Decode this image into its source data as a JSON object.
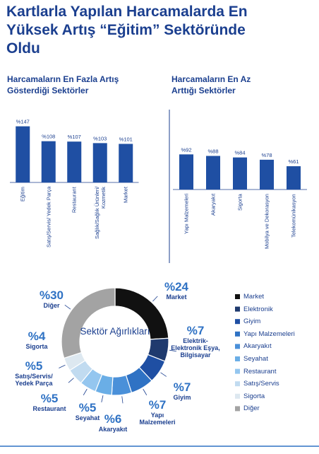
{
  "header": {
    "title": "Kartlarla Yapılan Harcamalarda En Yüksek Artış “Eğitim” Sektöründe Oldu"
  },
  "chart_data": [
    {
      "type": "bar",
      "title": "Harcamaların En Fazla Artış Gösterdiği Sektörler",
      "categories": [
        "Eğitim",
        "Satış/Servis/ Yedek Parça",
        "Restaurant",
        "Sağlık/Sağlık Ürünleri/ Kozmetik",
        "Market"
      ],
      "values": [
        147,
        108,
        107,
        103,
        101
      ],
      "value_labels": [
        "%147",
        "%108",
        "%107",
        "%103",
        "%101"
      ],
      "color": "#1f4fa3"
    },
    {
      "type": "bar",
      "title": "Harcamaların En Az Arttığı Sektörler",
      "categories": [
        "Yapı Malzemeleri",
        "Akaryakıt",
        "Sigorta",
        "Mobilya ve Dekorasyon",
        "Telekomünikasyon"
      ],
      "values": [
        92,
        88,
        84,
        78,
        61
      ],
      "value_labels": [
        "%92",
        "%88",
        "%84",
        "%78",
        "%61"
      ],
      "color": "#1f4fa3"
    },
    {
      "type": "donut",
      "center_text": "Sektör Ağırlıkları",
      "categories": [
        "Market",
        "Elektronik",
        "Giyim",
        "Yapı Malzemeleri",
        "Akaryakıt",
        "Seyahat",
        "Restaurant",
        "Satış/Servis",
        "Sigorta",
        "Diğer"
      ],
      "labels": [
        "Market",
        "Elektrik-Elektronik Eşya, Bilgisayar",
        "Giyim",
        "Yapı Malzemeleri",
        "Akaryakıt",
        "Seyahat",
        "Restaurant",
        "Satış/Servis/ Yedek Parça",
        "Sigorta",
        "Diğer"
      ],
      "values": [
        24,
        7,
        7,
        7,
        6,
        5,
        5,
        5,
        4,
        30
      ],
      "value_labels": [
        "%24",
        "%7",
        "%7",
        "%7",
        "%6",
        "%5",
        "%5",
        "%5",
        "%4",
        "%30"
      ],
      "colors": [
        "#111111",
        "#1f3a6e",
        "#1f4fa3",
        "#2f72c4",
        "#4a90d9",
        "#6aaee6",
        "#94c6ef",
        "#c1dbf0",
        "#dde8f0",
        "#a3a3a3"
      ]
    }
  ]
}
